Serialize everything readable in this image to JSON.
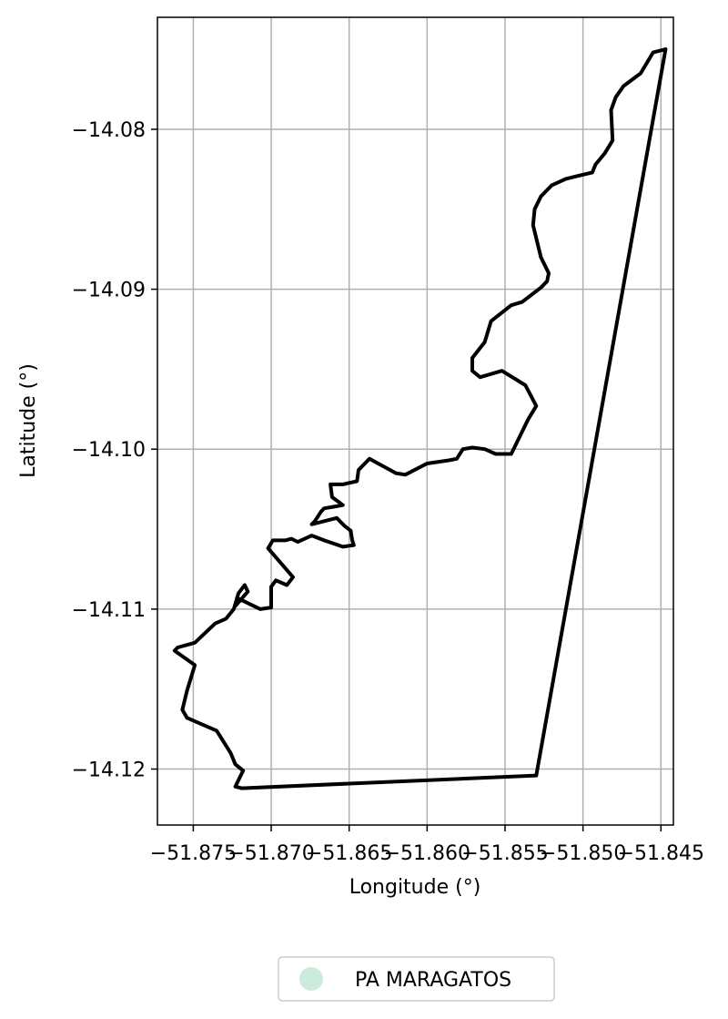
{
  "chart_data": {
    "type": "map",
    "xlabel": "Longitude (°)",
    "ylabel": "Latitude (°)",
    "xlim": [
      -51.8773,
      -51.8442
    ],
    "ylim": [
      -14.1235,
      -14.073
    ],
    "grid": true,
    "x_ticks": [
      -51.875,
      -51.87,
      -51.865,
      -51.86,
      -51.855,
      -51.85,
      -51.845
    ],
    "x_tick_labels": [
      "−51.875",
      "−51.870",
      "−51.865",
      "−51.860",
      "−51.855",
      "−51.850",
      "−51.845"
    ],
    "y_ticks": [
      -14.08,
      -14.09,
      -14.1,
      -14.11,
      -14.12
    ],
    "y_tick_labels": [
      "−14.08",
      "−14.09",
      "−14.10",
      "−14.11",
      "−14.12"
    ],
    "legend": {
      "placement": "bottom-center",
      "entries": [
        {
          "label": "PA MARAGATOS",
          "color": "#cdebdc",
          "marker": "circle"
        }
      ]
    },
    "boundary_color": "#000000",
    "boundary": [
      [
        -51.8447,
        -14.075
      ],
      [
        -51.8455,
        -14.0752
      ],
      [
        -51.8463,
        -14.0765
      ],
      [
        -51.8474,
        -14.0773
      ],
      [
        -51.8479,
        -14.078
      ],
      [
        -51.8482,
        -14.0788
      ],
      [
        -51.8481,
        -14.0807
      ],
      [
        -51.8486,
        -14.0815
      ],
      [
        -51.8492,
        -14.0822
      ],
      [
        -51.8494,
        -14.0827
      ],
      [
        -51.8511,
        -14.0831
      ],
      [
        -51.852,
        -14.0835
      ],
      [
        -51.8527,
        -14.0842
      ],
      [
        -51.8531,
        -14.085
      ],
      [
        -51.8532,
        -14.086
      ],
      [
        -51.8527,
        -14.088
      ],
      [
        -51.8522,
        -14.089
      ],
      [
        -51.8523,
        -14.0895
      ],
      [
        -51.8527,
        -14.0899
      ],
      [
        -51.8539,
        -14.0908
      ],
      [
        -51.8546,
        -14.091
      ],
      [
        -51.8559,
        -14.092
      ],
      [
        -51.8563,
        -14.0933
      ],
      [
        -51.8571,
        -14.0943
      ],
      [
        -51.8571,
        -14.0951
      ],
      [
        -51.8566,
        -14.0955
      ],
      [
        -51.8552,
        -14.0951
      ],
      [
        -51.8537,
        -14.096
      ],
      [
        -51.853,
        -14.0973
      ],
      [
        -51.8535,
        -14.0981
      ],
      [
        -51.8546,
        -14.1003
      ],
      [
        -51.8556,
        -14.1003
      ],
      [
        -51.8563,
        -14.1
      ],
      [
        -51.8571,
        -14.0999
      ],
      [
        -51.8577,
        -14.1
      ],
      [
        -51.8581,
        -14.1006
      ],
      [
        -51.8586,
        -14.1007
      ],
      [
        -51.86,
        -14.1009
      ],
      [
        -51.8614,
        -14.1016
      ],
      [
        -51.862,
        -14.1015
      ],
      [
        -51.8637,
        -14.1006
      ],
      [
        -51.8644,
        -14.1013
      ],
      [
        -51.8645,
        -14.102
      ],
      [
        -51.8654,
        -14.1022
      ],
      [
        -51.8662,
        -14.1022
      ],
      [
        -51.8661,
        -14.103
      ],
      [
        -51.8654,
        -14.1035
      ],
      [
        -51.866,
        -14.1036
      ],
      [
        -51.8666,
        -14.1037
      ],
      [
        -51.8668,
        -14.1039
      ],
      [
        -51.8672,
        -14.1045
      ],
      [
        -51.8674,
        -14.1047
      ],
      [
        -51.8666,
        -14.1045
      ],
      [
        -51.8658,
        -14.1043
      ],
      [
        -51.8653,
        -14.1048
      ],
      [
        -51.8649,
        -14.1051
      ],
      [
        -51.8648,
        -14.1057
      ],
      [
        -51.8647,
        -14.106
      ],
      [
        -51.8654,
        -14.1061
      ],
      [
        -51.8666,
        -14.1057
      ],
      [
        -51.8674,
        -14.1054
      ],
      [
        -51.8683,
        -14.1058
      ],
      [
        -51.8687,
        -14.1056
      ],
      [
        -51.8691,
        -14.1057
      ],
      [
        -51.8699,
        -14.1057
      ],
      [
        -51.8702,
        -14.1062
      ],
      [
        -51.8686,
        -14.108
      ],
      [
        -51.869,
        -14.1085
      ],
      [
        -51.8697,
        -14.1082
      ],
      [
        -51.87,
        -14.1086
      ],
      [
        -51.87,
        -14.1099
      ],
      [
        -51.8707,
        -14.11
      ],
      [
        -51.8722,
        -14.1093
      ],
      [
        -51.8723,
        -14.1098
      ],
      [
        -51.8715,
        -14.1089
      ],
      [
        -51.8717,
        -14.1085
      ],
      [
        -51.8721,
        -14.109
      ],
      [
        -51.8724,
        -14.11
      ],
      [
        -51.8729,
        -14.1106
      ],
      [
        -51.8736,
        -14.1109
      ],
      [
        -51.8749,
        -14.1121
      ],
      [
        -51.876,
        -14.1124
      ],
      [
        -51.8762,
        -14.1126
      ],
      [
        -51.8749,
        -14.1135
      ],
      [
        -51.8754,
        -14.1151
      ],
      [
        -51.8757,
        -14.1163
      ],
      [
        -51.8754,
        -14.1168
      ],
      [
        -51.8735,
        -14.1176
      ],
      [
        -51.8726,
        -14.119
      ],
      [
        -51.8723,
        -14.1197
      ],
      [
        -51.8718,
        -14.1201
      ],
      [
        -51.8723,
        -14.1211
      ],
      [
        -51.8719,
        -14.1212
      ],
      [
        -51.853,
        -14.1204
      ],
      [
        -51.8447,
        -14.075
      ]
    ]
  }
}
